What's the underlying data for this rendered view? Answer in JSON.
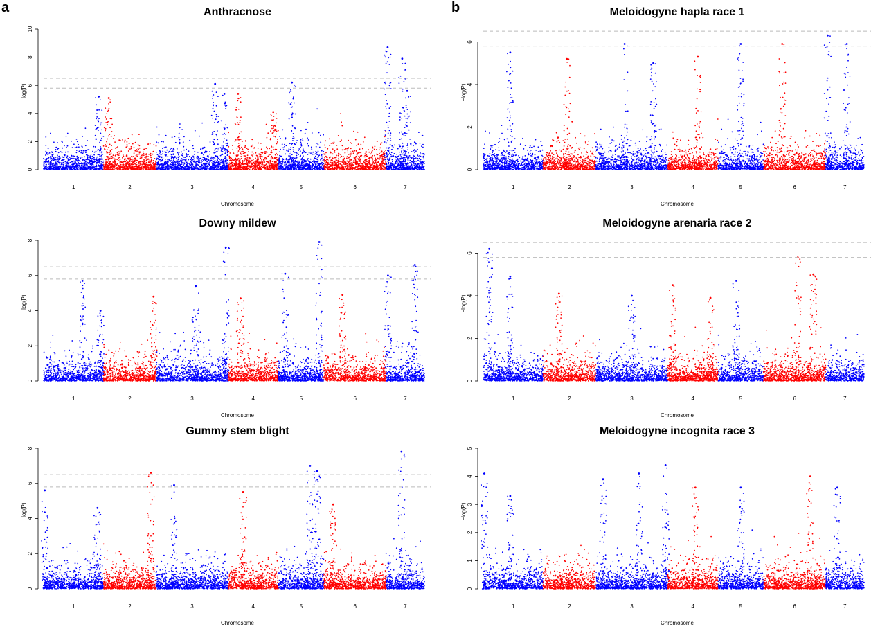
{
  "panel_labels": {
    "a": "a",
    "b": "b"
  },
  "colors": {
    "odd_chr": "#0000ff",
    "even_chr": "#ff0000",
    "threshold": "#bbbbbb",
    "axis": "#000000"
  },
  "chart_data": [
    {
      "type": "scatter",
      "title": "Anthracnose",
      "xlabel": "Chromosome",
      "ylabel": "−log(P)",
      "ylim": [
        0,
        10
      ],
      "yticks": [
        0,
        2,
        4,
        6,
        8,
        10
      ],
      "categories": [
        "1",
        "2",
        "3",
        "4",
        "5",
        "6",
        "7"
      ],
      "chromosome_widths": [
        1.25,
        1.1,
        1.5,
        1.05,
        0.95,
        1.3,
        0.8
      ],
      "thresholds": [
        5.8,
        6.5
      ],
      "peaks": [
        {
          "chr": 1,
          "pos": 0.92,
          "y": 5.2
        },
        {
          "chr": 2,
          "pos": 0.1,
          "y": 5.1
        },
        {
          "chr": 3,
          "pos": 0.82,
          "y": 6.1
        },
        {
          "chr": 3,
          "pos": 0.95,
          "y": 5.4
        },
        {
          "chr": 4,
          "pos": 0.2,
          "y": 5.4
        },
        {
          "chr": 4,
          "pos": 0.9,
          "y": 4.1
        },
        {
          "chr": 5,
          "pos": 0.3,
          "y": 6.2
        },
        {
          "chr": 7,
          "pos": 0.04,
          "y": 8.7
        },
        {
          "chr": 7,
          "pos": 0.42,
          "y": 7.9
        },
        {
          "chr": 7,
          "pos": 0.55,
          "y": 5.6
        }
      ]
    },
    {
      "type": "scatter",
      "title": "Downy mildew",
      "xlabel": "Chromosome",
      "ylabel": "−log(P)",
      "ylim": [
        0,
        8
      ],
      "yticks": [
        0,
        2,
        4,
        6,
        8
      ],
      "categories": [
        "1",
        "2",
        "3",
        "4",
        "5",
        "6",
        "7"
      ],
      "chromosome_widths": [
        1.25,
        1.1,
        1.5,
        1.05,
        0.95,
        1.3,
        0.8
      ],
      "thresholds": [
        5.8,
        6.5
      ],
      "peaks": [
        {
          "chr": 1,
          "pos": 0.65,
          "y": 5.7
        },
        {
          "chr": 1,
          "pos": 0.95,
          "y": 4.0
        },
        {
          "chr": 2,
          "pos": 0.95,
          "y": 4.8
        },
        {
          "chr": 3,
          "pos": 0.55,
          "y": 5.4
        },
        {
          "chr": 3,
          "pos": 0.97,
          "y": 7.6
        },
        {
          "chr": 4,
          "pos": 0.25,
          "y": 4.7
        },
        {
          "chr": 5,
          "pos": 0.15,
          "y": 6.1
        },
        {
          "chr": 5,
          "pos": 0.9,
          "y": 7.9
        },
        {
          "chr": 6,
          "pos": 0.3,
          "y": 4.9
        },
        {
          "chr": 7,
          "pos": 0.05,
          "y": 6.0
        },
        {
          "chr": 7,
          "pos": 0.75,
          "y": 6.6
        }
      ]
    },
    {
      "type": "scatter",
      "title": "Gummy stem blight",
      "xlabel": "Chromosome",
      "ylabel": "−log(P)",
      "ylim": [
        0,
        8
      ],
      "yticks": [
        0,
        2,
        4,
        6,
        8
      ],
      "categories": [
        "1",
        "2",
        "3",
        "4",
        "5",
        "6",
        "7"
      ],
      "chromosome_widths": [
        1.25,
        1.1,
        1.5,
        1.05,
        0.95,
        1.3,
        0.8
      ],
      "thresholds": [
        5.8,
        6.5
      ],
      "peaks": [
        {
          "chr": 1,
          "pos": 0.02,
          "y": 5.6
        },
        {
          "chr": 1,
          "pos": 0.9,
          "y": 4.6
        },
        {
          "chr": 2,
          "pos": 0.9,
          "y": 6.6
        },
        {
          "chr": 3,
          "pos": 0.25,
          "y": 5.9
        },
        {
          "chr": 4,
          "pos": 0.3,
          "y": 5.5
        },
        {
          "chr": 5,
          "pos": 0.7,
          "y": 7.0
        },
        {
          "chr": 5,
          "pos": 0.85,
          "y": 6.7
        },
        {
          "chr": 6,
          "pos": 0.15,
          "y": 4.8
        },
        {
          "chr": 7,
          "pos": 0.4,
          "y": 7.8
        }
      ]
    },
    {
      "type": "scatter",
      "title": "Meloidogyne hapla race 1",
      "xlabel": "Chromosome",
      "ylabel": "−log(P)",
      "ylim": [
        0,
        6.6
      ],
      "yticks": [
        0,
        2,
        4,
        6
      ],
      "categories": [
        "1",
        "2",
        "3",
        "4",
        "5",
        "6",
        "7"
      ],
      "chromosome_widths": [
        1.25,
        1.1,
        1.5,
        1.05,
        0.95,
        1.3,
        0.8
      ],
      "thresholds": [
        5.8,
        6.5
      ],
      "peaks": [
        {
          "chr": 1,
          "pos": 0.45,
          "y": 5.5
        },
        {
          "chr": 2,
          "pos": 0.45,
          "y": 5.2
        },
        {
          "chr": 3,
          "pos": 0.4,
          "y": 5.9
        },
        {
          "chr": 3,
          "pos": 0.8,
          "y": 5.0
        },
        {
          "chr": 4,
          "pos": 0.6,
          "y": 5.3
        },
        {
          "chr": 5,
          "pos": 0.5,
          "y": 5.9
        },
        {
          "chr": 6,
          "pos": 0.3,
          "y": 5.9
        },
        {
          "chr": 7,
          "pos": 0.05,
          "y": 6.3
        },
        {
          "chr": 7,
          "pos": 0.55,
          "y": 5.9
        }
      ]
    },
    {
      "type": "scatter",
      "title": "Meloidogyne arenaria race 2",
      "xlabel": "Chromosome",
      "ylabel": "−log(P)",
      "ylim": [
        0,
        6.6
      ],
      "yticks": [
        0,
        2,
        4,
        6
      ],
      "categories": [
        "1",
        "2",
        "3",
        "4",
        "5",
        "6",
        "7"
      ],
      "chromosome_widths": [
        1.25,
        1.1,
        1.5,
        1.05,
        0.95,
        1.3,
        0.8
      ],
      "thresholds": [
        5.8,
        6.5
      ],
      "peaks": [
        {
          "chr": 1,
          "pos": 0.1,
          "y": 6.2
        },
        {
          "chr": 1,
          "pos": 0.45,
          "y": 4.9
        },
        {
          "chr": 2,
          "pos": 0.3,
          "y": 4.1
        },
        {
          "chr": 3,
          "pos": 0.5,
          "y": 4.0
        },
        {
          "chr": 4,
          "pos": 0.1,
          "y": 4.5
        },
        {
          "chr": 4,
          "pos": 0.85,
          "y": 3.9
        },
        {
          "chr": 5,
          "pos": 0.4,
          "y": 4.7
        },
        {
          "chr": 6,
          "pos": 0.55,
          "y": 5.8
        },
        {
          "chr": 6,
          "pos": 0.8,
          "y": 5.0
        }
      ]
    },
    {
      "type": "scatter",
      "title": "Meloidogyne incognita race 3",
      "xlabel": "Chromosome",
      "ylabel": "−log(P)",
      "ylim": [
        0,
        5
      ],
      "yticks": [
        0,
        1,
        2,
        3,
        4,
        5
      ],
      "categories": [
        "1",
        "2",
        "3",
        "4",
        "5",
        "6",
        "7"
      ],
      "chromosome_widths": [
        1.25,
        1.1,
        1.5,
        1.05,
        0.95,
        1.3,
        0.8
      ],
      "thresholds": [],
      "peaks": [
        {
          "chr": 1,
          "pos": 0.02,
          "y": 4.1
        },
        {
          "chr": 1,
          "pos": 0.45,
          "y": 3.3
        },
        {
          "chr": 3,
          "pos": 0.1,
          "y": 3.9
        },
        {
          "chr": 3,
          "pos": 0.6,
          "y": 4.1
        },
        {
          "chr": 3,
          "pos": 0.97,
          "y": 4.4
        },
        {
          "chr": 4,
          "pos": 0.55,
          "y": 3.6
        },
        {
          "chr": 5,
          "pos": 0.5,
          "y": 3.6
        },
        {
          "chr": 6,
          "pos": 0.75,
          "y": 4.0
        },
        {
          "chr": 7,
          "pos": 0.3,
          "y": 3.6
        }
      ]
    }
  ]
}
